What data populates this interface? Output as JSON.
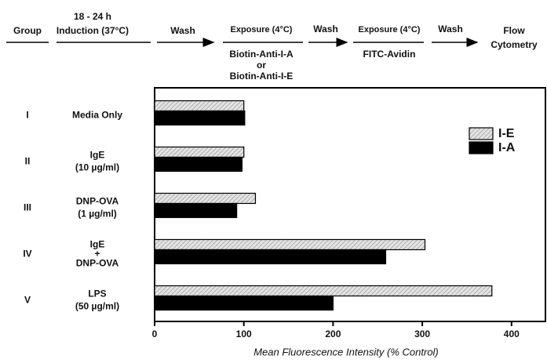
{
  "protocol": {
    "group_heading": "Group",
    "steps": [
      {
        "heading": [
          "18 - 24 h",
          "Induction (37°C)"
        ]
      },
      {
        "heading": [
          "Wash"
        ]
      },
      {
        "heading": [
          "Exposure (4°C)"
        ],
        "detail": [
          "Biotin-Anti-I-A",
          "or",
          "Biotin-Anti-I-E"
        ]
      },
      {
        "heading": [
          "Wash"
        ]
      },
      {
        "heading": [
          "Exposure (4°C)"
        ],
        "detail": [
          "FITC-Avidin"
        ]
      },
      {
        "heading": [
          "Wash"
        ]
      },
      {
        "heading": [
          "Flow",
          "Cytometry"
        ]
      }
    ]
  },
  "chart_data": {
    "type": "hbar",
    "categories": [
      "I",
      "II",
      "III",
      "IV",
      "V"
    ],
    "category_descriptions": [
      [
        "Media Only"
      ],
      [
        "IgE",
        "(10 µg/ml)"
      ],
      [
        "DNP-OVA",
        "(1 µg/ml)"
      ],
      [
        "IgE",
        "+",
        "DNP-OVA"
      ],
      [
        "LPS",
        "(50 µg/ml)"
      ]
    ],
    "series": [
      {
        "name": "I-E",
        "color": "#dcdcdc",
        "hatched": true,
        "values": [
          100,
          100,
          113,
          303,
          378
        ]
      },
      {
        "name": "I-A",
        "color": "#000000",
        "hatched": false,
        "values": [
          101,
          98,
          92,
          259,
          200
        ]
      }
    ],
    "x_label": "Mean Fluorescence Intensity (% Control)",
    "xlim": [
      0,
      438
    ],
    "xticks": [
      0,
      100,
      200,
      300,
      400
    ],
    "legend": "upper right"
  }
}
